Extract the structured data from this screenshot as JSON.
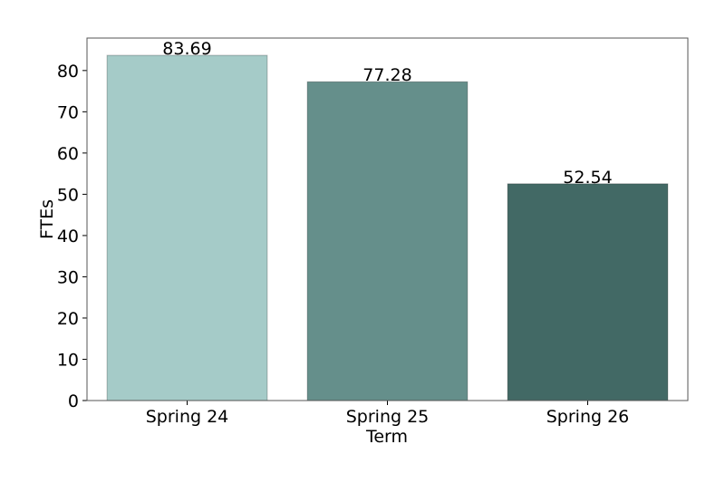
{
  "chart_data": {
    "type": "bar",
    "x_label": "Term",
    "y_label": "FTEs",
    "categories": [
      "Spring 24",
      "Spring 25",
      "Spring 26"
    ],
    "values": [
      83.69,
      77.28,
      52.54
    ],
    "colors": [
      "#a5cbc8",
      "#658f8b",
      "#426965"
    ],
    "ylim": [
      0,
      87.87
    ],
    "yticks": [
      0,
      10,
      20,
      30,
      40,
      50,
      60,
      70,
      80
    ],
    "grid": false,
    "value_labels_shown": true
  }
}
